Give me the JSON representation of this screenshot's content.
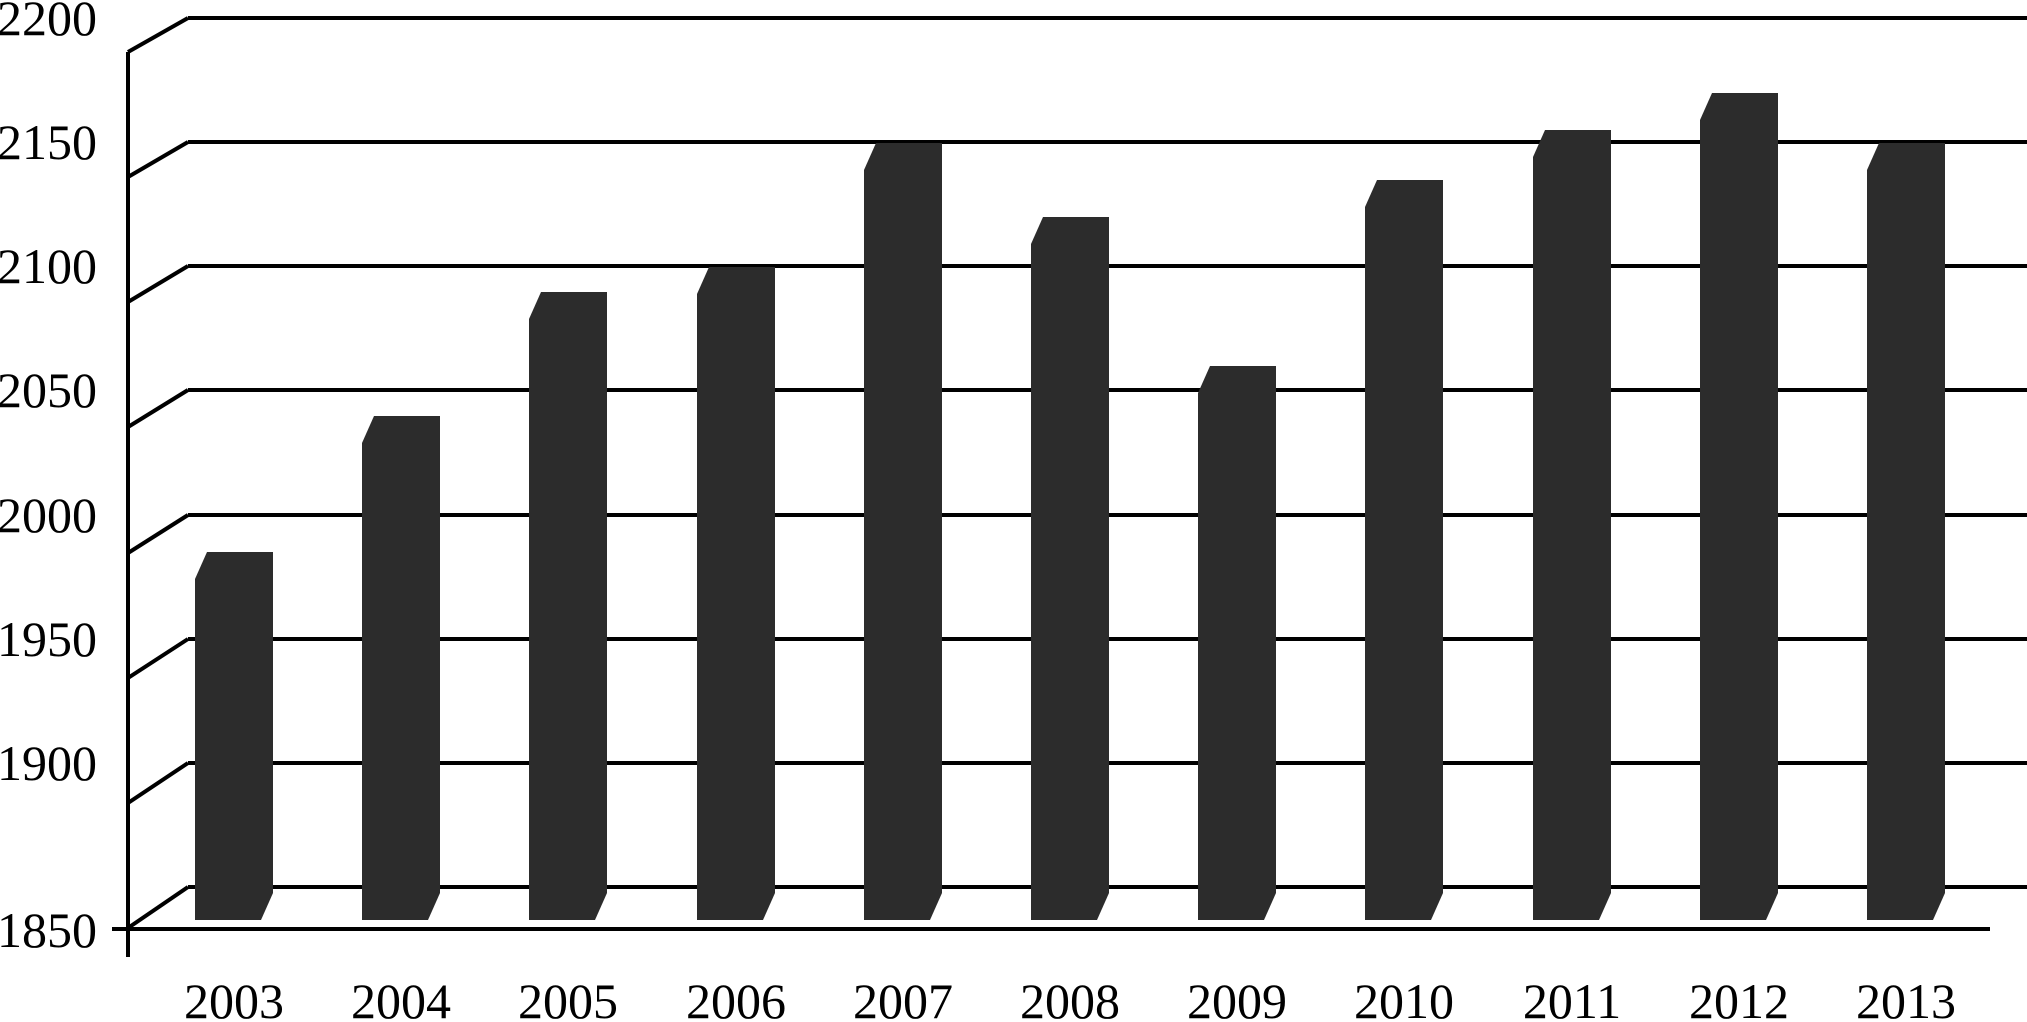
{
  "chart_data": {
    "type": "bar",
    "style_3d": true,
    "title": "",
    "xlabel": "",
    "ylabel": "",
    "categories": [
      "2003",
      "2004",
      "2005",
      "2006",
      "2007",
      "2008",
      "2009",
      "2010",
      "2011",
      "2012",
      "2013"
    ],
    "values": [
      1990,
      2045,
      2095,
      2105,
      2155,
      2125,
      2065,
      2140,
      2160,
      2175,
      2155
    ],
    "ylim": [
      1850,
      2200
    ],
    "ytick_step": 50,
    "ytick_labels": [
      "2200",
      "2150",
      "2100",
      "2050",
      "2000",
      "1950",
      "1900",
      "1850"
    ],
    "grid": true,
    "legend": false,
    "colors": {
      "bar": "#2c2c2c",
      "line": "#000000",
      "text": "#000000",
      "background": "#ffffff"
    }
  }
}
